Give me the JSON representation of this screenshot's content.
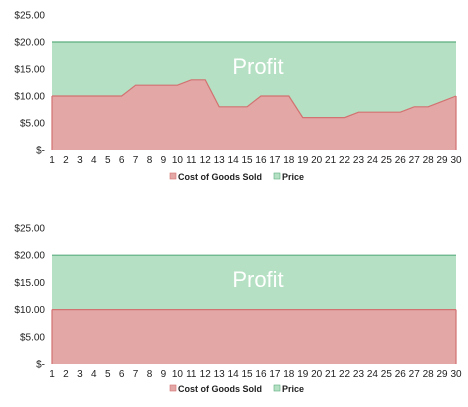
{
  "colors": {
    "price_fill": "#b5e0c3",
    "price_stroke": "#5cae7f",
    "cogs_fill": "#e3a7a6",
    "cogs_stroke": "#d27271",
    "annotation_text": "#ffffff",
    "axis_text": "#222222"
  },
  "chart_data": [
    {
      "type": "area",
      "stacked": false,
      "x": [
        1,
        2,
        3,
        4,
        5,
        6,
        7,
        8,
        9,
        10,
        11,
        12,
        13,
        14,
        15,
        16,
        17,
        18,
        19,
        20,
        21,
        22,
        23,
        24,
        25,
        26,
        27,
        28,
        29,
        30
      ],
      "series": [
        {
          "name": "Cost of Goods Sold",
          "values": [
            10,
            10,
            10,
            10,
            10,
            10,
            12,
            12,
            12,
            12,
            13,
            13,
            8,
            8,
            8,
            10,
            10,
            10,
            6,
            6,
            6,
            6,
            7,
            7,
            7,
            7,
            8,
            8,
            9,
            10
          ]
        },
        {
          "name": "Price",
          "values": [
            20,
            20,
            20,
            20,
            20,
            20,
            20,
            20,
            20,
            20,
            20,
            20,
            20,
            20,
            20,
            20,
            20,
            20,
            20,
            20,
            20,
            20,
            20,
            20,
            20,
            20,
            20,
            20,
            20,
            20
          ]
        }
      ],
      "yticks": [
        "$-",
        "$5.00",
        "$10.00",
        "$15.00",
        "$20.00",
        "$25.00"
      ],
      "ylim": [
        0,
        25
      ],
      "annotation": "Profit",
      "grid": false,
      "legend": "bottom"
    },
    {
      "type": "area",
      "stacked": false,
      "x": [
        1,
        2,
        3,
        4,
        5,
        6,
        7,
        8,
        9,
        10,
        11,
        12,
        13,
        14,
        15,
        16,
        17,
        18,
        19,
        20,
        21,
        22,
        23,
        24,
        25,
        26,
        27,
        28,
        29,
        30
      ],
      "series": [
        {
          "name": "Cost of Goods Sold",
          "values": [
            10,
            10,
            10,
            10,
            10,
            10,
            10,
            10,
            10,
            10,
            10,
            10,
            10,
            10,
            10,
            10,
            10,
            10,
            10,
            10,
            10,
            10,
            10,
            10,
            10,
            10,
            10,
            10,
            10,
            10
          ]
        },
        {
          "name": "Price",
          "values": [
            20,
            20,
            20,
            20,
            20,
            20,
            20,
            20,
            20,
            20,
            20,
            20,
            20,
            20,
            20,
            20,
            20,
            20,
            20,
            20,
            20,
            20,
            20,
            20,
            20,
            20,
            20,
            20,
            20,
            20
          ]
        }
      ],
      "yticks": [
        "$-",
        "$5.00",
        "$10.00",
        "$15.00",
        "$20.00",
        "$25.00"
      ],
      "ylim": [
        0,
        25
      ],
      "annotation": "Profit",
      "grid": false,
      "legend": "bottom"
    }
  ]
}
